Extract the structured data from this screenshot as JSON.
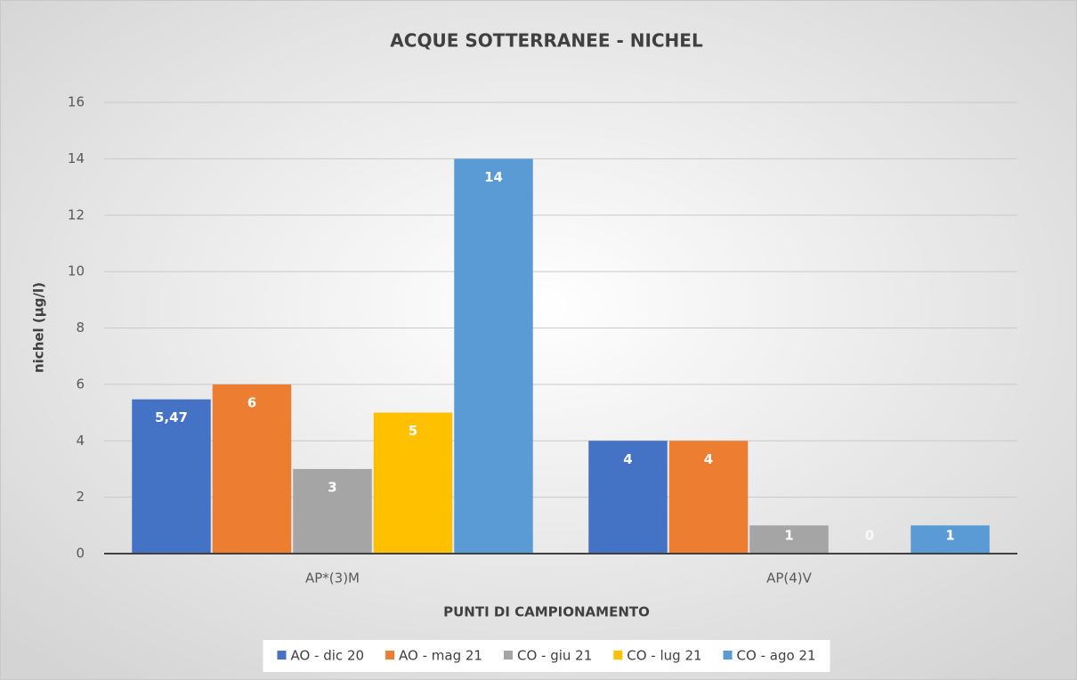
{
  "chart_data": {
    "type": "bar",
    "title": "ACQUE SOTTERRANEE - NICHEL",
    "x_label": "PUNTI DI CAMPIONAMENTO",
    "y_label": "nichel (µg/l)",
    "categories": [
      "AP*(3)M",
      "AP(4)V"
    ],
    "series": [
      {
        "name": "AO - dic 20",
        "color": "#4472c4",
        "values": [
          5.47,
          4
        ],
        "value_labels": [
          "5,47",
          "4"
        ]
      },
      {
        "name": "AO - mag 21",
        "color": "#ed7d31",
        "values": [
          6,
          4
        ]
      },
      {
        "name": "CO - giu 21",
        "color": "#a5a5a5",
        "values": [
          3,
          1
        ]
      },
      {
        "name": "CO - lug 21",
        "color": "#ffc000",
        "values": [
          5,
          0
        ]
      },
      {
        "name": "CO - ago 21",
        "color": "#5b9bd5",
        "values": [
          14,
          1
        ]
      }
    ],
    "ylim": [
      0,
      16
    ],
    "yticks": [
      0,
      2,
      4,
      6,
      8,
      10,
      12,
      14,
      16
    ],
    "grid": true,
    "legend": "bottom"
  }
}
